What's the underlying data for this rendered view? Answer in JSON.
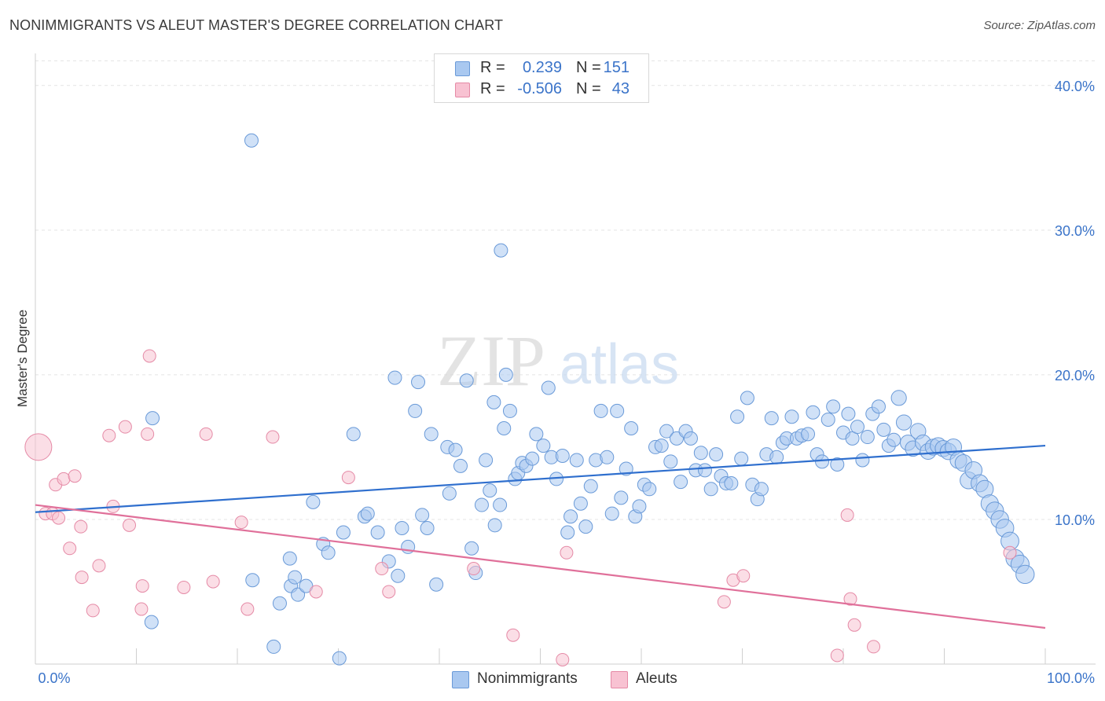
{
  "title": "NONIMMIGRANTS VS ALEUT MASTER'S DEGREE CORRELATION CHART",
  "source": "Source: ZipAtlas.com",
  "watermark": {
    "zip": "ZIP",
    "atlas": "atlas"
  },
  "legend": {
    "rows": [
      {
        "r_label": "R =",
        "r_value": "0.239",
        "n_label": "N =",
        "n_value": "151",
        "color": "#a9c8f0",
        "border": "#6a9ad8"
      },
      {
        "r_label": "R =",
        "r_value": "-0.506",
        "n_label": "N =",
        "n_value": "43",
        "color": "#f8c2d2",
        "border": "#e58aa6"
      }
    ]
  },
  "bottom_legend": [
    {
      "label": "Nonimmigrants",
      "color": "#a9c8f0",
      "border": "#6a9ad8"
    },
    {
      "label": "Aleuts",
      "color": "#f8c2d2",
      "border": "#e58aa6"
    }
  ],
  "chart_data": {
    "type": "scatter",
    "title": "NONIMMIGRANTS VS ALEUT MASTER'S DEGREE CORRELATION CHART",
    "xlabel": "",
    "ylabel": "Master's Degree",
    "xlim": [
      0,
      100
    ],
    "ylim": [
      0,
      42
    ],
    "x_tick_labels": [
      "0.0%",
      "100.0%"
    ],
    "y_ticks": [
      10,
      20,
      30,
      40
    ],
    "y_tick_labels": [
      "10.0%",
      "20.0%",
      "30.0%",
      "40.0%"
    ],
    "grid": true,
    "legend_position": "top-center",
    "series": [
      {
        "name": "Nonimmigrants",
        "color": "#a9c8f0",
        "stroke": "#6a9ad8",
        "line_color": "#2f6fce",
        "trend": {
          "x": [
            0,
            100
          ],
          "y": [
            10.5,
            15.1
          ]
        },
        "points": [
          [
            21.4,
            36.2
          ],
          [
            46.1,
            28.6
          ],
          [
            11.5,
            2.9
          ],
          [
            11.6,
            17.0
          ],
          [
            23.6,
            1.2
          ],
          [
            30.1,
            0.4
          ],
          [
            21.5,
            5.8
          ],
          [
            24.2,
            4.2
          ],
          [
            25.2,
            7.3
          ],
          [
            25.3,
            5.4
          ],
          [
            25.7,
            6.0
          ],
          [
            26.0,
            4.8
          ],
          [
            26.8,
            5.4
          ],
          [
            27.5,
            11.2
          ],
          [
            28.5,
            8.3
          ],
          [
            29.0,
            7.7
          ],
          [
            30.5,
            9.1
          ],
          [
            31.5,
            15.9
          ],
          [
            32.6,
            10.2
          ],
          [
            32.9,
            10.4
          ],
          [
            33.9,
            9.1
          ],
          [
            35.0,
            7.1
          ],
          [
            35.6,
            19.8
          ],
          [
            35.9,
            6.1
          ],
          [
            36.3,
            9.4
          ],
          [
            36.9,
            8.1
          ],
          [
            37.6,
            17.5
          ],
          [
            37.9,
            19.5
          ],
          [
            38.3,
            10.3
          ],
          [
            38.8,
            9.4
          ],
          [
            39.2,
            15.9
          ],
          [
            39.7,
            5.5
          ],
          [
            40.8,
            15.0
          ],
          [
            41.0,
            11.8
          ],
          [
            41.6,
            14.8
          ],
          [
            42.1,
            13.7
          ],
          [
            42.7,
            19.6
          ],
          [
            43.2,
            8.0
          ],
          [
            43.6,
            6.3
          ],
          [
            44.2,
            11.0
          ],
          [
            44.6,
            14.1
          ],
          [
            45.0,
            12.0
          ],
          [
            45.4,
            18.1
          ],
          [
            46.0,
            11.0
          ],
          [
            46.4,
            16.3
          ],
          [
            46.6,
            20.0
          ],
          [
            47.0,
            17.5
          ],
          [
            47.5,
            12.8
          ],
          [
            47.8,
            13.2
          ],
          [
            48.2,
            13.9
          ],
          [
            48.6,
            13.7
          ],
          [
            49.2,
            14.2
          ],
          [
            49.6,
            15.9
          ],
          [
            50.3,
            15.1
          ],
          [
            50.8,
            19.1
          ],
          [
            51.1,
            14.3
          ],
          [
            51.6,
            12.8
          ],
          [
            52.2,
            14.4
          ],
          [
            52.7,
            9.1
          ],
          [
            53.0,
            10.2
          ],
          [
            53.6,
            14.1
          ],
          [
            54.0,
            11.1
          ],
          [
            54.5,
            9.5
          ],
          [
            55.0,
            12.3
          ],
          [
            55.5,
            14.1
          ],
          [
            56.0,
            17.5
          ],
          [
            56.6,
            14.3
          ],
          [
            57.1,
            10.4
          ],
          [
            57.6,
            17.5
          ],
          [
            58.0,
            11.5
          ],
          [
            58.5,
            13.5
          ],
          [
            59.0,
            16.3
          ],
          [
            59.4,
            10.2
          ],
          [
            59.8,
            10.9
          ],
          [
            60.3,
            12.4
          ],
          [
            60.8,
            12.1
          ],
          [
            61.4,
            15.0
          ],
          [
            62.0,
            15.1
          ],
          [
            62.5,
            16.1
          ],
          [
            62.9,
            14.0
          ],
          [
            63.5,
            15.6
          ],
          [
            63.9,
            12.6
          ],
          [
            64.4,
            16.1
          ],
          [
            64.9,
            15.6
          ],
          [
            65.4,
            13.4
          ],
          [
            65.9,
            14.6
          ],
          [
            66.3,
            13.4
          ],
          [
            66.9,
            12.1
          ],
          [
            67.4,
            14.5
          ],
          [
            67.9,
            13.0
          ],
          [
            68.4,
            12.5
          ],
          [
            68.9,
            12.5
          ],
          [
            69.5,
            17.1
          ],
          [
            69.9,
            14.2
          ],
          [
            70.5,
            18.4
          ],
          [
            71.0,
            12.4
          ],
          [
            71.5,
            11.4
          ],
          [
            71.9,
            12.1
          ],
          [
            72.4,
            14.5
          ],
          [
            72.9,
            17.0
          ],
          [
            73.4,
            14.3
          ],
          [
            74.0,
            15.3
          ],
          [
            74.4,
            15.6
          ],
          [
            74.9,
            17.1
          ],
          [
            75.4,
            15.6
          ],
          [
            75.9,
            15.8
          ],
          [
            76.5,
            15.9
          ],
          [
            77.0,
            17.4
          ],
          [
            77.4,
            14.5
          ],
          [
            77.9,
            14.0
          ],
          [
            78.5,
            16.9
          ],
          [
            79.0,
            17.8
          ],
          [
            79.4,
            13.8
          ],
          [
            80.0,
            16.0
          ],
          [
            80.5,
            17.3
          ],
          [
            80.9,
            15.6
          ],
          [
            81.4,
            16.4
          ],
          [
            81.9,
            14.1
          ],
          [
            82.4,
            15.7
          ],
          [
            82.9,
            17.3
          ],
          [
            83.5,
            17.8
          ],
          [
            84.0,
            16.2
          ],
          [
            84.5,
            15.1
          ],
          [
            85.0,
            15.5
          ],
          [
            85.5,
            18.4
          ],
          [
            86.0,
            16.7
          ],
          [
            86.4,
            15.3
          ],
          [
            86.9,
            14.9
          ],
          [
            87.4,
            16.1
          ],
          [
            87.9,
            15.3
          ],
          [
            88.4,
            14.7
          ],
          [
            88.9,
            15.0
          ],
          [
            89.4,
            15.1
          ],
          [
            89.9,
            14.9
          ],
          [
            90.4,
            14.7
          ],
          [
            90.9,
            15.0
          ],
          [
            91.4,
            14.1
          ],
          [
            91.9,
            13.9
          ],
          [
            92.4,
            12.7
          ],
          [
            92.9,
            13.4
          ],
          [
            93.5,
            12.5
          ],
          [
            94.0,
            12.1
          ],
          [
            94.5,
            11.1
          ],
          [
            95.0,
            10.6
          ],
          [
            95.5,
            10.0
          ],
          [
            96.0,
            9.4
          ],
          [
            96.5,
            8.5
          ],
          [
            97.0,
            7.3
          ],
          [
            97.5,
            6.9
          ],
          [
            98.0,
            6.2
          ],
          [
            45.5,
            9.6
          ]
        ]
      },
      {
        "name": "Aleuts",
        "color": "#f8c2d2",
        "stroke": "#e58aa6",
        "line_color": "#e0709a",
        "trend": {
          "x": [
            0,
            100
          ],
          "y": [
            11.0,
            2.5
          ]
        },
        "points": [
          [
            0.3,
            15.0
          ],
          [
            1.0,
            10.4
          ],
          [
            1.7,
            10.4
          ],
          [
            2.0,
            12.4
          ],
          [
            2.3,
            10.1
          ],
          [
            2.8,
            12.8
          ],
          [
            3.4,
            8.0
          ],
          [
            3.9,
            13.0
          ],
          [
            4.5,
            9.5
          ],
          [
            4.6,
            6.0
          ],
          [
            5.7,
            3.7
          ],
          [
            6.3,
            6.8
          ],
          [
            7.3,
            15.8
          ],
          [
            7.7,
            10.9
          ],
          [
            8.9,
            16.4
          ],
          [
            9.3,
            9.6
          ],
          [
            10.5,
            3.8
          ],
          [
            10.6,
            5.4
          ],
          [
            11.1,
            15.9
          ],
          [
            11.3,
            21.3
          ],
          [
            14.7,
            5.3
          ],
          [
            16.9,
            15.9
          ],
          [
            17.6,
            5.7
          ],
          [
            20.4,
            9.8
          ],
          [
            21.0,
            3.8
          ],
          [
            23.5,
            15.7
          ],
          [
            27.8,
            5.0
          ],
          [
            31.0,
            12.9
          ],
          [
            34.3,
            6.6
          ],
          [
            35.0,
            5.0
          ],
          [
            43.4,
            6.6
          ],
          [
            47.3,
            2.0
          ],
          [
            52.2,
            0.3
          ],
          [
            52.6,
            7.7
          ],
          [
            68.2,
            4.3
          ],
          [
            69.1,
            5.8
          ],
          [
            70.1,
            6.1
          ],
          [
            79.4,
            0.6
          ],
          [
            80.4,
            10.3
          ],
          [
            80.7,
            4.5
          ],
          [
            81.1,
            2.7
          ],
          [
            83.0,
            1.2
          ],
          [
            96.5,
            7.7
          ]
        ]
      }
    ]
  }
}
